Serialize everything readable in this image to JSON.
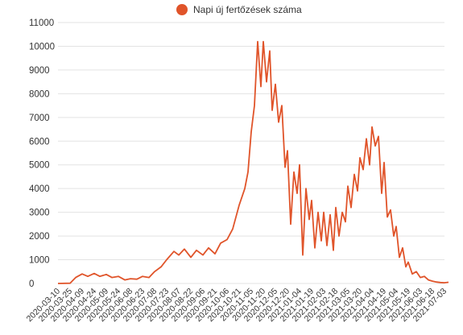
{
  "chart_data": {
    "type": "line",
    "title": "",
    "xlabel": "",
    "ylabel": "",
    "ylim": [
      0,
      11000
    ],
    "yticks": [
      0,
      1000,
      2000,
      3000,
      4000,
      5000,
      6000,
      7000,
      8000,
      9000,
      10000,
      11000
    ],
    "grid": true,
    "legend_position": "top",
    "x_tick_labels": [
      "2020-03-10",
      "2020-03-25",
      "2020-04-09",
      "2020-04-24",
      "2020-05-09",
      "2020-05-24",
      "2020-06-08",
      "2020-06-23",
      "2020-07-08",
      "2020-07-23",
      "2020-08-07",
      "2020-08-22",
      "2020-09-06",
      "2020-09-21",
      "2020-10-06",
      "2020-10-21",
      "2020-11-05",
      "2020-11-20",
      "2020-12-05",
      "2020-12-20",
      "2021-01-04",
      "2021-01-19",
      "2021-02-03",
      "2021-02-18",
      "2021-03-05",
      "2021-03-20",
      "2021-04-04",
      "2021-04-19",
      "2021-05-04",
      "2021-05-19",
      "2021-06-03",
      "2021-06-18",
      "2021-07-03"
    ],
    "series": [
      {
        "name": "Napi új fertőzések száma",
        "color": "#e0542a",
        "x": [
          "2020-03-10",
          "2020-03-25",
          "2020-04-01",
          "2020-04-09",
          "2020-04-16",
          "2020-04-24",
          "2020-05-01",
          "2020-05-09",
          "2020-05-16",
          "2020-05-24",
          "2020-06-01",
          "2020-06-08",
          "2020-06-16",
          "2020-06-23",
          "2020-07-01",
          "2020-07-08",
          "2020-07-16",
          "2020-07-23",
          "2020-08-01",
          "2020-08-07",
          "2020-08-14",
          "2020-08-22",
          "2020-08-29",
          "2020-09-06",
          "2020-09-13",
          "2020-09-21",
          "2020-09-28",
          "2020-10-06",
          "2020-10-13",
          "2020-10-21",
          "2020-10-28",
          "2020-11-01",
          "2020-11-05",
          "2020-11-09",
          "2020-11-13",
          "2020-11-17",
          "2020-11-20",
          "2020-11-24",
          "2020-11-28",
          "2020-12-01",
          "2020-12-05",
          "2020-12-09",
          "2020-12-13",
          "2020-12-17",
          "2020-12-20",
          "2020-12-24",
          "2020-12-28",
          "2021-01-01",
          "2021-01-04",
          "2021-01-08",
          "2021-01-12",
          "2021-01-16",
          "2021-01-19",
          "2021-01-23",
          "2021-01-27",
          "2021-01-31",
          "2021-02-03",
          "2021-02-07",
          "2021-02-11",
          "2021-02-15",
          "2021-02-18",
          "2021-02-22",
          "2021-02-26",
          "2021-03-02",
          "2021-03-05",
          "2021-03-09",
          "2021-03-13",
          "2021-03-17",
          "2021-03-20",
          "2021-03-24",
          "2021-03-28",
          "2021-04-01",
          "2021-04-04",
          "2021-04-08",
          "2021-04-12",
          "2021-04-16",
          "2021-04-19",
          "2021-04-23",
          "2021-04-27",
          "2021-05-01",
          "2021-05-04",
          "2021-05-08",
          "2021-05-12",
          "2021-05-16",
          "2021-05-19",
          "2021-05-24",
          "2021-05-29",
          "2021-06-03",
          "2021-06-08",
          "2021-06-13",
          "2021-06-18",
          "2021-06-23",
          "2021-06-28",
          "2021-07-03",
          "2021-07-08"
        ],
        "values": [
          0,
          10,
          250,
          400,
          300,
          420,
          300,
          380,
          250,
          300,
          150,
          200,
          180,
          300,
          250,
          500,
          700,
          1000,
          1350,
          1200,
          1450,
          1100,
          1400,
          1200,
          1500,
          1250,
          1700,
          1850,
          2300,
          3300,
          4000,
          4700,
          6400,
          7500,
          10200,
          8300,
          10200,
          8500,
          9800,
          7300,
          8400,
          6800,
          7500,
          4900,
          5600,
          2500,
          4700,
          3800,
          5000,
          1200,
          4000,
          2700,
          3500,
          1500,
          3000,
          1800,
          3000,
          1600,
          2900,
          1400,
          3200,
          2000,
          3000,
          2600,
          4100,
          3200,
          4600,
          3900,
          5300,
          4800,
          6100,
          5000,
          6600,
          5800,
          6200,
          3800,
          5100,
          2800,
          3100,
          2000,
          2400,
          1100,
          1500,
          700,
          900,
          400,
          500,
          250,
          300,
          150,
          100,
          60,
          40,
          30,
          50
        ]
      }
    ]
  }
}
